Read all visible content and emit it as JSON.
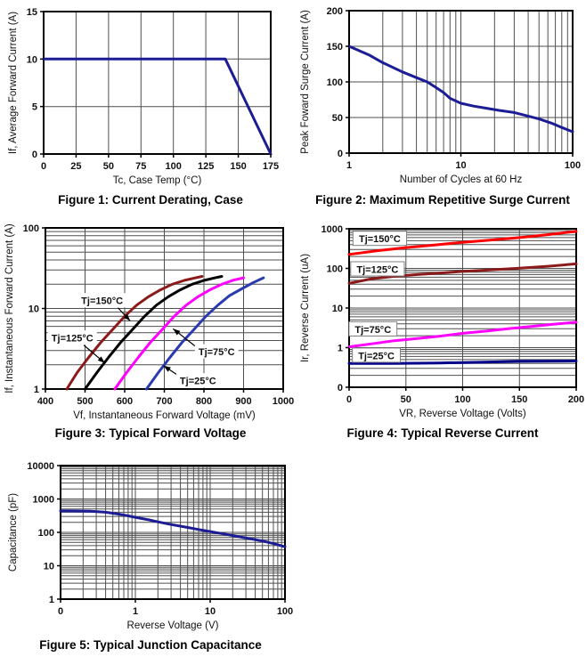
{
  "page": {
    "background": "#ffffff"
  },
  "chart_data": [
    {
      "type": "line",
      "caption": "Figure 1: Current Derating, Case",
      "xlabel": "Tc, Case Temp (°C)",
      "ylabel": "If, Average Forward Current (A)",
      "x_axis": {
        "scale": "linear",
        "min": 0,
        "max": 175,
        "minor_grid": false,
        "ticks": [
          [
            0,
            "0"
          ],
          [
            25,
            "25"
          ],
          [
            50,
            "50"
          ],
          [
            75,
            "75"
          ],
          [
            100,
            "100"
          ],
          [
            125,
            "125"
          ],
          [
            150,
            "150"
          ],
          [
            175,
            "175"
          ]
        ]
      },
      "y_axis": {
        "scale": "linear",
        "min": 0,
        "max": 15,
        "minor_grid": false,
        "ticks": [
          [
            0,
            "0"
          ],
          [
            5,
            "5"
          ],
          [
            10,
            "10"
          ],
          [
            15,
            "15"
          ]
        ]
      },
      "grid": true,
      "legend_position": "none",
      "series": [
        {
          "name": "average-forward-current-limit",
          "color": "#1c1c94",
          "width": 3,
          "points": [
            [
              0,
              10
            ],
            [
              140,
              10
            ],
            [
              175,
              0
            ]
          ]
        }
      ],
      "annotations": []
    },
    {
      "type": "line",
      "caption": "Figure 2: Maximum Repetitive Surge Current",
      "xlabel": "Number of Cycles at 60 Hz",
      "ylabel": "Peak Foward Surge Current (A)",
      "x_axis": {
        "scale": "log",
        "min": 1,
        "max": 100,
        "minor_grid": true,
        "ticks": [
          [
            1,
            "1"
          ],
          [
            10,
            "10"
          ],
          [
            100,
            "100"
          ]
        ]
      },
      "y_axis": {
        "scale": "linear",
        "min": 0,
        "max": 200,
        "minor_grid": false,
        "ticks": [
          [
            0,
            "0"
          ],
          [
            50,
            "50"
          ],
          [
            100,
            "100"
          ],
          [
            150,
            "150"
          ],
          [
            200,
            "200"
          ]
        ]
      },
      "grid": true,
      "legend_position": "none",
      "series": [
        {
          "name": "peak-surge-current",
          "color": "#1c1c94",
          "width": 3,
          "points": [
            [
              1,
              150
            ],
            [
              1.5,
              138
            ],
            [
              2,
              127
            ],
            [
              3,
              114
            ],
            [
              4,
              106
            ],
            [
              5,
              100
            ],
            [
              6,
              92
            ],
            [
              7,
              85
            ],
            [
              8,
              77
            ],
            [
              10,
              70
            ],
            [
              13,
              66
            ],
            [
              17,
              63
            ],
            [
              22,
              60
            ],
            [
              30,
              57
            ],
            [
              40,
              52
            ],
            [
              50,
              48
            ],
            [
              65,
              42
            ],
            [
              80,
              36
            ],
            [
              100,
              30
            ]
          ]
        }
      ],
      "annotations": []
    },
    {
      "type": "line",
      "caption": "Figure 3: Typical Forward Voltage",
      "xlabel": "Vf, Instantaneous Forward Voltage (mV)",
      "ylabel": "If, Instantaneous Forward Current (A)",
      "x_axis": {
        "scale": "linear",
        "min": 400,
        "max": 1000,
        "minor_grid": false,
        "ticks": [
          [
            400,
            "400"
          ],
          [
            500,
            "500"
          ],
          [
            600,
            "600"
          ],
          [
            700,
            "700"
          ],
          [
            800,
            "800"
          ],
          [
            900,
            "900"
          ],
          [
            1000,
            "1000"
          ]
        ]
      },
      "y_axis": {
        "scale": "log",
        "min": 1,
        "max": 100,
        "minor_grid": true,
        "ticks": [
          [
            1,
            "1"
          ],
          [
            10,
            "10"
          ],
          [
            100,
            "100"
          ]
        ]
      },
      "grid": true,
      "legend_position": "inline-labels",
      "series": [
        {
          "name": "Tj=150°C",
          "color": "#8c1a1a",
          "width": 3,
          "points": [
            [
              454,
              1
            ],
            [
              480,
              1.6
            ],
            [
              510,
              2.5
            ],
            [
              540,
              3.8
            ],
            [
              570,
              5.5
            ],
            [
              600,
              8
            ],
            [
              630,
              11
            ],
            [
              660,
              14
            ],
            [
              690,
              17
            ],
            [
              720,
              20
            ],
            [
              750,
              22.3
            ],
            [
              775,
              23.8
            ],
            [
              795,
              25
            ]
          ]
        },
        {
          "name": "Tj=125°C",
          "color": "#000000",
          "width": 3,
          "points": [
            [
              500,
              1
            ],
            [
              530,
              1.6
            ],
            [
              560,
              2.5
            ],
            [
              590,
              3.8
            ],
            [
              620,
              5.5
            ],
            [
              650,
              8
            ],
            [
              680,
              11
            ],
            [
              710,
              14
            ],
            [
              740,
              17
            ],
            [
              770,
              20
            ],
            [
              800,
              22.3
            ],
            [
              828,
              24
            ],
            [
              845,
              25
            ]
          ]
        },
        {
          "name": "Tj=75°C",
          "color": "#ff00ff",
          "width": 3,
          "points": [
            [
              575,
              1
            ],
            [
              605,
              1.6
            ],
            [
              635,
              2.5
            ],
            [
              665,
              3.8
            ],
            [
              695,
              5.5
            ],
            [
              725,
              8
            ],
            [
              755,
              11
            ],
            [
              785,
              14
            ],
            [
              815,
              17
            ],
            [
              845,
              20
            ],
            [
              875,
              22.5
            ],
            [
              900,
              24
            ]
          ]
        },
        {
          "name": "Tj=25°C",
          "color": "#2a3ab0",
          "width": 3,
          "points": [
            [
              655,
              1
            ],
            [
              685,
              1.6
            ],
            [
              715,
              2.5
            ],
            [
              745,
              3.8
            ],
            [
              775,
              5.5
            ],
            [
              805,
              8
            ],
            [
              835,
              11
            ],
            [
              865,
              14.5
            ],
            [
              895,
              17.5
            ],
            [
              925,
              21
            ],
            [
              950,
              24
            ]
          ]
        }
      ],
      "annotations": [
        {
          "text": "Tj=150°C",
          "x": 543,
          "y": 12.5,
          "box": false,
          "arrow": [
            583,
            10.2,
            614,
            7.0
          ]
        },
        {
          "text": "Tj=125°C",
          "x": 468,
          "y": 4.3,
          "box": false,
          "arrow": [
            497,
            3.5,
            550,
            2.1
          ]
        },
        {
          "text": "Tj=75°C",
          "x": 832,
          "y": 2.9,
          "box": false,
          "arrow": [
            778,
            3.4,
            722,
            5.6
          ]
        },
        {
          "text": "Tj=25°C",
          "x": 785,
          "y": 1.27,
          "box": false,
          "arrow": [
            737,
            1.45,
            698,
            1.95
          ]
        }
      ]
    },
    {
      "type": "line",
      "caption": "Figure 4: Typical Reverse Current",
      "xlabel": "VR, Reverse Voltage (Volts)",
      "ylabel": "Ir, Reverse Current (uA)",
      "x_axis": {
        "scale": "linear",
        "min": 0,
        "max": 200,
        "minor_grid": false,
        "ticks": [
          [
            0,
            "0"
          ],
          [
            50,
            "50"
          ],
          [
            100,
            "100"
          ],
          [
            150,
            "150"
          ],
          [
            200,
            "200"
          ]
        ]
      },
      "y_axis": {
        "scale": "log",
        "min": 0.1,
        "max": 1000,
        "minor_grid": true,
        "ticks": [
          [
            0.1,
            "0"
          ],
          [
            1,
            "1"
          ],
          [
            10,
            "10"
          ],
          [
            100,
            "100"
          ],
          [
            1000,
            "1000"
          ]
        ]
      },
      "grid": true,
      "legend_position": "inline-labels",
      "series": [
        {
          "name": "Tj=150°C",
          "color": "#ff0000",
          "width": 3,
          "points": [
            [
              0,
              225
            ],
            [
              25,
              280
            ],
            [
              50,
              335
            ],
            [
              75,
              390
            ],
            [
              100,
              455
            ],
            [
              125,
              520
            ],
            [
              150,
              600
            ],
            [
              175,
              710
            ],
            [
              200,
              860
            ]
          ]
        },
        {
          "name": "Tj=125°C",
          "color": "#8b1a1a",
          "width": 3,
          "points": [
            [
              0,
              42
            ],
            [
              20,
              55
            ],
            [
              40,
              63
            ],
            [
              60,
              70
            ],
            [
              80,
              76
            ],
            [
              100,
              84
            ],
            [
              125,
              92
            ],
            [
              150,
              101
            ],
            [
              175,
              113
            ],
            [
              200,
              130
            ]
          ]
        },
        {
          "name": "Tj=75°C",
          "color": "#ff00ff",
          "width": 3,
          "points": [
            [
              0,
              1.05
            ],
            [
              20,
              1.25
            ],
            [
              40,
              1.5
            ],
            [
              60,
              1.7
            ],
            [
              80,
              1.95
            ],
            [
              100,
              2.3
            ],
            [
              120,
              2.6
            ],
            [
              140,
              3.0
            ],
            [
              160,
              3.4
            ],
            [
              180,
              3.9
            ],
            [
              200,
              4.4
            ]
          ]
        },
        {
          "name": "Tj=25°C",
          "color": "#00008b",
          "width": 3,
          "points": [
            [
              0,
              0.4
            ],
            [
              40,
              0.4
            ],
            [
              80,
              0.41
            ],
            [
              120,
              0.43
            ],
            [
              150,
              0.45
            ],
            [
              200,
              0.46
            ]
          ]
        }
      ],
      "annotations": [
        {
          "text": "Tj=150°C",
          "x": 27,
          "y": 560,
          "box": true
        },
        {
          "text": "Tj=125°C",
          "x": 25,
          "y": 95,
          "box": true
        },
        {
          "text": "Tj=75°C",
          "x": 21,
          "y": 2.9,
          "box": true
        },
        {
          "text": "Tj=25°C",
          "x": 24,
          "y": 0.63,
          "box": true
        }
      ]
    },
    {
      "type": "line",
      "caption": "Figure 5: Typical Junction Capacitance",
      "xlabel": "Reverse Voltage (V)",
      "ylabel": "Capacitance (pF)",
      "x_axis": {
        "scale": "log",
        "min": 0.1,
        "max": 100,
        "minor_grid": true,
        "ticks": [
          [
            0.1,
            "0"
          ],
          [
            1,
            "1"
          ],
          [
            10,
            "10"
          ],
          [
            100,
            "100"
          ]
        ]
      },
      "y_axis": {
        "scale": "log",
        "min": 1,
        "max": 10000,
        "minor_grid": true,
        "ticks": [
          [
            1,
            "1"
          ],
          [
            10,
            "10"
          ],
          [
            100,
            "100"
          ],
          [
            1000,
            "1000"
          ],
          [
            10000,
            "10000"
          ]
        ]
      },
      "grid": true,
      "legend_position": "none",
      "series": [
        {
          "name": "junction-capacitance",
          "color": "#1c1c94",
          "width": 3,
          "points": [
            [
              0.1,
              440
            ],
            [
              0.15,
              437
            ],
            [
              0.25,
              428
            ],
            [
              0.4,
              400
            ],
            [
              0.6,
              352
            ],
            [
              0.8,
              312
            ],
            [
              1,
              283
            ],
            [
              1.5,
              237
            ],
            [
              2,
              207
            ],
            [
              3,
              172
            ],
            [
              5,
              140
            ],
            [
              7,
              122
            ],
            [
              10,
              106
            ],
            [
              15,
              90
            ],
            [
              20,
              80
            ],
            [
              30,
              68
            ],
            [
              50,
              55
            ],
            [
              70,
              46
            ],
            [
              100,
              37
            ]
          ]
        }
      ],
      "annotations": []
    }
  ]
}
